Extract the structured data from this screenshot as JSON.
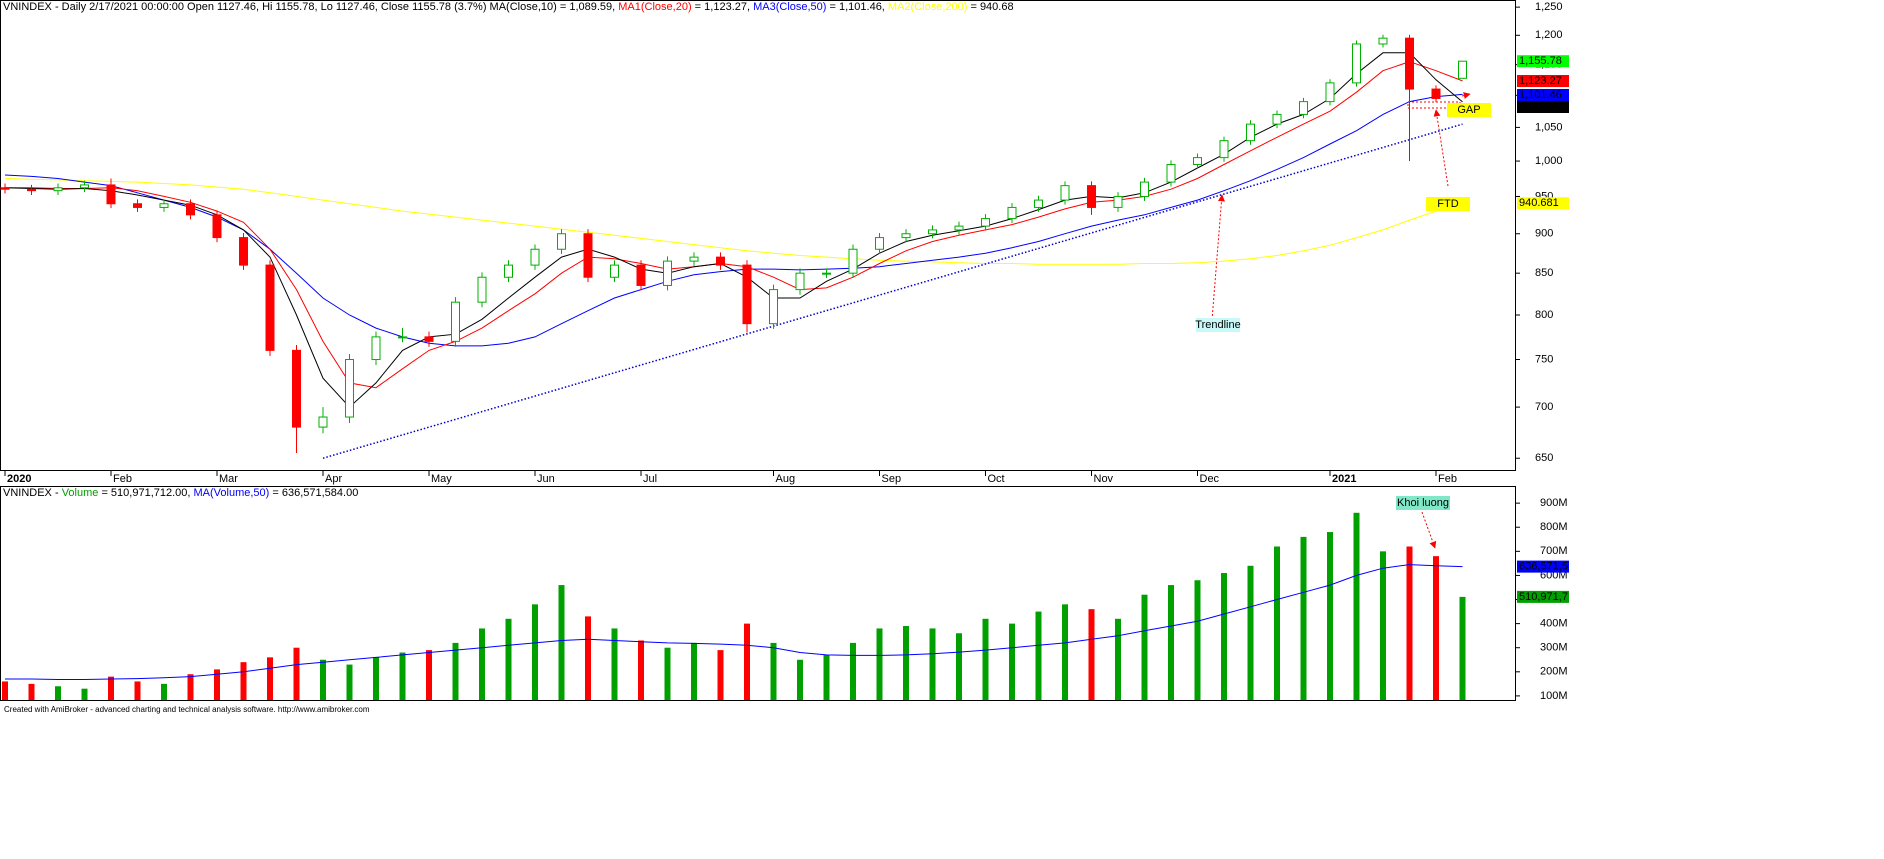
{
  "chart_data": [
    {
      "type": "candlestick",
      "title": [
        {
          "text": "VNINDEX - Daily 2/17/2021 00:00:00 Open 1127.46, Hi 1155.78, Lo 1127.46, Close 1155.78 (3.7%) MA(Close,10) = 1,089.59, ",
          "color": "#000000"
        },
        {
          "text": "MA1(Close,20)",
          "color": "#ff0000"
        },
        {
          "text": " = 1,123.27, ",
          "color": "#000000"
        },
        {
          "text": "MA3(Close,50)",
          "color": "#0000ff"
        },
        {
          "text": " = 1,101.46, ",
          "color": "#000000"
        },
        {
          "text": "MA2(Close,200)",
          "color": "#ffff00"
        },
        {
          "text": " = 940.68",
          "color": "#000000"
        }
      ],
      "categories": [
        "2020",
        null,
        null,
        null,
        "Feb",
        null,
        null,
        null,
        "Mar",
        null,
        null,
        null,
        "Apr",
        null,
        null,
        null,
        "May",
        null,
        null,
        null,
        "Jun",
        null,
        null,
        null,
        "Jul",
        null,
        null,
        null,
        null,
        "Aug",
        null,
        null,
        null,
        "Sep",
        null,
        null,
        null,
        "Oct",
        null,
        null,
        null,
        "Nov",
        null,
        null,
        null,
        "Dec",
        null,
        null,
        null,
        null,
        "2021",
        null,
        null,
        null,
        "Feb",
        null
      ],
      "open": [
        962,
        960,
        958,
        962,
        966,
        940,
        935,
        940,
        925,
        895,
        860,
        760,
        680,
        690,
        750,
        775,
        775,
        770,
        815,
        845,
        860,
        880,
        900,
        845,
        860,
        835,
        865,
        870,
        860,
        790,
        830,
        850,
        850,
        880,
        895,
        900,
        905,
        910,
        920,
        935,
        945,
        965,
        935,
        950,
        970,
        995,
        1005,
        1030,
        1055,
        1070,
        1090,
        1120,
        1185,
        1195,
        1110,
        1127.46
      ],
      "high": [
        968,
        966,
        968,
        972,
        975,
        946,
        946,
        946,
        931,
        901,
        866,
        766,
        700,
        756,
        781,
        785,
        781,
        821,
        851,
        866,
        886,
        906,
        906,
        866,
        866,
        871,
        876,
        876,
        866,
        836,
        856,
        856,
        886,
        901,
        906,
        911,
        916,
        926,
        941,
        951,
        971,
        971,
        956,
        976,
        1001,
        1011,
        1036,
        1061,
        1076,
        1096,
        1126,
        1191,
        1201,
        1201,
        1116,
        1155.78
      ],
      "low": [
        954,
        952,
        952,
        956,
        934,
        929,
        929,
        919,
        889,
        854,
        754,
        655,
        674,
        684,
        744,
        769,
        764,
        764,
        809,
        839,
        854,
        874,
        839,
        839,
        829,
        829,
        859,
        854,
        780,
        784,
        824,
        844,
        844,
        874,
        889,
        894,
        899,
        904,
        914,
        929,
        939,
        925,
        929,
        944,
        964,
        989,
        999,
        1024,
        1049,
        1064,
        1084,
        1114,
        1179,
        1000,
        1089,
        1127.46
      ],
      "close": [
        960,
        958,
        962,
        966,
        940,
        935,
        940,
        925,
        895,
        860,
        760,
        680,
        690,
        750,
        775,
        775,
        770,
        815,
        845,
        860,
        880,
        900,
        845,
        860,
        835,
        865,
        870,
        860,
        790,
        830,
        850,
        850,
        880,
        895,
        900,
        905,
        910,
        920,
        935,
        945,
        965,
        935,
        950,
        970,
        995,
        1005,
        1030,
        1055,
        1070,
        1090,
        1120,
        1185,
        1195,
        1110,
        1095,
        1155.78
      ],
      "close_label": "1,155.78",
      "up_color": "#00b000",
      "down_color": "#ff0000",
      "log_scale": true,
      "ylim": [
        639,
        1263
      ],
      "yticks": [
        650,
        700,
        750,
        800,
        850,
        900,
        950,
        {
          "value": 1000,
          "label": "1,000"
        },
        {
          "value": 1050,
          "label": "1,050"
        },
        {
          "value": 1100,
          "label": "1,100"
        },
        {
          "value": 1150,
          "label": "1,150"
        },
        {
          "value": 1200,
          "label": "1,200"
        },
        {
          "value": 1250,
          "label": "1,250"
        }
      ],
      "series": [
        {
          "color": "#ffff00",
          "label_color": "#000000",
          "value_label": "940.681",
          "values": [
            975,
            974,
            973,
            972,
            971,
            970,
            968,
            966,
            963,
            960,
            955,
            950,
            945,
            940,
            935,
            930,
            926,
            922,
            918,
            914,
            910,
            906,
            902,
            898,
            894,
            890,
            886,
            882,
            878,
            875,
            872,
            870,
            868,
            866,
            865,
            864,
            863,
            862,
            862,
            861,
            861,
            861,
            861,
            862,
            862,
            863,
            865,
            868,
            872,
            878,
            885,
            895,
            905,
            918,
            930,
            940.681
          ]
        },
        {
          "color": "#0000ff",
          "label_color": "#ffffff",
          "value_label": "1,101.46",
          "values": [
            980,
            978,
            975,
            970,
            965,
            955,
            945,
            935,
            922,
            905,
            880,
            850,
            820,
            800,
            785,
            775,
            768,
            765,
            765,
            768,
            775,
            790,
            805,
            820,
            830,
            840,
            848,
            852,
            855,
            855,
            854,
            855,
            856,
            858,
            862,
            866,
            870,
            875,
            882,
            890,
            900,
            910,
            918,
            925,
            935,
            945,
            958,
            972,
            988,
            1005,
            1025,
            1045,
            1070,
            1090,
            1098,
            1101.46
          ]
        },
        {
          "color": "#ff0000",
          "label_color": "#000000",
          "value_label": "1,123.27",
          "values": [
            962,
            962,
            961,
            961,
            962,
            958,
            950,
            942,
            930,
            915,
            880,
            830,
            770,
            725,
            720,
            740,
            760,
            770,
            785,
            805,
            825,
            850,
            870,
            868,
            862,
            855,
            858,
            862,
            858,
            845,
            830,
            832,
            845,
            862,
            878,
            890,
            898,
            905,
            912,
            922,
            933,
            942,
            945,
            950,
            960,
            975,
            995,
            1015,
            1035,
            1055,
            1075,
            1105,
            1140,
            1155,
            1140,
            1123.27
          ]
        },
        {
          "color": "#000000",
          "label_color": "#ffffff",
          "value_label": "1,089.59",
          "values": [
            962,
            961,
            960,
            961,
            958,
            952,
            945,
            938,
            925,
            905,
            870,
            800,
            730,
            700,
            725,
            760,
            775,
            778,
            795,
            820,
            845,
            870,
            880,
            870,
            855,
            850,
            858,
            862,
            845,
            820,
            820,
            840,
            855,
            875,
            890,
            898,
            904,
            910,
            920,
            932,
            945,
            950,
            948,
            955,
            970,
            990,
            1010,
            1035,
            1055,
            1070,
            1095,
            1135,
            1170,
            1170,
            1125,
            1089.59
          ]
        }
      ],
      "trendline": {
        "x": [
          12,
          55
        ],
        "values": [
          650,
          1055
        ],
        "color": "#0000cc"
      },
      "annotations": [
        "Trendline",
        "FTD",
        "GAP"
      ]
    },
    {
      "type": "bar",
      "title": [
        {
          "text": "VNINDEX - ",
          "color": "#000000"
        },
        {
          "text": "Volume",
          "color": "#00a000"
        },
        {
          "text": " = 510,971,712.00, ",
          "color": "#000000"
        },
        {
          "text": "MA(Volume,50)",
          "color": "#0000ff"
        },
        {
          "text": " = 636,571,584.00",
          "color": "#000000"
        }
      ],
      "values": [
        160000000,
        150000000,
        140000000,
        130000000,
        180000000,
        160000000,
        150000000,
        190000000,
        210000000,
        240000000,
        260000000,
        300000000,
        250000000,
        230000000,
        260000000,
        280000000,
        290000000,
        320000000,
        380000000,
        420000000,
        480000000,
        560000000,
        430000000,
        380000000,
        330000000,
        300000000,
        320000000,
        290000000,
        400000000,
        320000000,
        250000000,
        270000000,
        320000000,
        380000000,
        390000000,
        380000000,
        360000000,
        420000000,
        400000000,
        450000000,
        480000000,
        460000000,
        420000000,
        520000000,
        560000000,
        580000000,
        610000000,
        640000000,
        720000000,
        760000000,
        780000000,
        860000000,
        700000000,
        720000000,
        680000000,
        510971712
      ],
      "value_label": "510,971,7",
      "up_color": "#00a000",
      "down_color": "#ff0000",
      "ylim": [
        83000000,
        967000000
      ],
      "yticks": [
        {
          "value": 100000000,
          "label": "100M"
        },
        {
          "value": 200000000,
          "label": "200M"
        },
        {
          "value": 300000000,
          "label": "300M"
        },
        {
          "value": 400000000,
          "label": "400M"
        },
        {
          "value": 500000000,
          "label": "500M"
        },
        {
          "value": 600000000,
          "label": "600M"
        },
        {
          "value": 700000000,
          "label": "700M"
        },
        {
          "value": 800000000,
          "label": "800M"
        },
        {
          "value": 900000000,
          "label": "900M"
        }
      ],
      "series": [
        {
          "color": "#0000ff",
          "label_color": "#ffffff",
          "value_label": "636,571,5",
          "values": [
            170000000,
            170000000,
            168000000,
            168000000,
            170000000,
            172000000,
            175000000,
            180000000,
            190000000,
            200000000,
            215000000,
            230000000,
            240000000,
            250000000,
            260000000,
            270000000,
            280000000,
            290000000,
            300000000,
            310000000,
            320000000,
            330000000,
            335000000,
            330000000,
            325000000,
            320000000,
            318000000,
            315000000,
            310000000,
            300000000,
            280000000,
            270000000,
            268000000,
            268000000,
            270000000,
            275000000,
            282000000,
            290000000,
            300000000,
            310000000,
            320000000,
            335000000,
            350000000,
            370000000,
            390000000,
            410000000,
            440000000,
            470000000,
            500000000,
            530000000,
            560000000,
            600000000,
            630000000,
            645000000,
            640000000,
            636571584
          ]
        }
      ],
      "annotations": [
        "Khoi luong"
      ]
    }
  ],
  "footer": "Created with AmiBroker - advanced charting and technical analysis software. http://www.amibroker.com"
}
